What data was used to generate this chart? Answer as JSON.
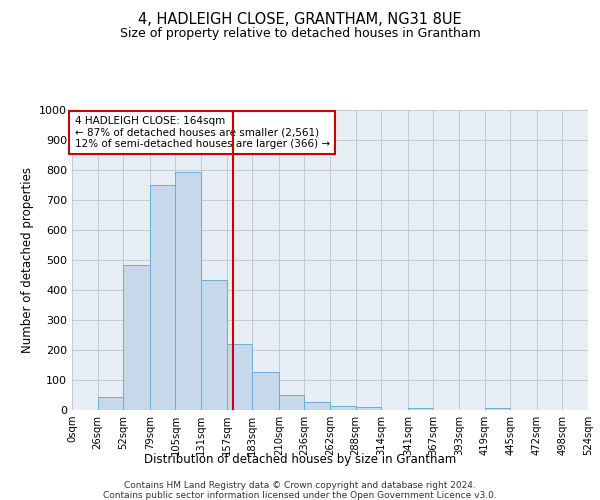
{
  "title": "4, HADLEIGH CLOSE, GRANTHAM, NG31 8UE",
  "subtitle": "Size of property relative to detached houses in Grantham",
  "xlabel": "Distribution of detached houses by size in Grantham",
  "ylabel": "Number of detached properties",
  "bar_color": "#c8d8eb",
  "bar_edge_color": "#6baed6",
  "background_color": "#e8eef5",
  "annotation_text": "4 HADLEIGH CLOSE: 164sqm\n← 87% of detached houses are smaller (2,561)\n12% of semi-detached houses are larger (366) →",
  "vline_x": 164,
  "vline_color": "#cc0000",
  "ylim": [
    0,
    1000
  ],
  "yticks": [
    0,
    100,
    200,
    300,
    400,
    500,
    600,
    700,
    800,
    900,
    1000
  ],
  "bin_edges": [
    0,
    26,
    52,
    79,
    105,
    131,
    157,
    183,
    210,
    236,
    262,
    288,
    314,
    341,
    367,
    393,
    419,
    445,
    472,
    498,
    524
  ],
  "bin_counts": [
    0,
    45,
    485,
    750,
    795,
    435,
    220,
    128,
    50,
    28,
    15,
    10,
    0,
    8,
    0,
    0,
    8,
    0,
    0,
    0
  ],
  "footer_line1": "Contains HM Land Registry data © Crown copyright and database right 2024.",
  "footer_line2": "Contains public sector information licensed under the Open Government Licence v3.0."
}
